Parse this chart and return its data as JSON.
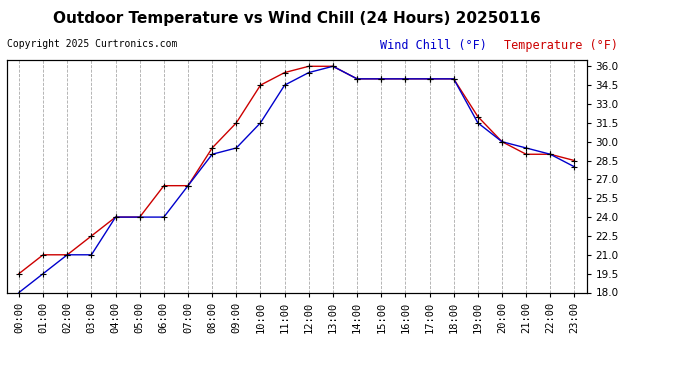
{
  "title": "Outdoor Temperature vs Wind Chill (24 Hours) 20250116",
  "copyright": "Copyright 2025 Curtronics.com",
  "legend_wind_chill": "Wind Chill (°F)",
  "legend_temperature": "Temperature (°F)",
  "hours": [
    "00:00",
    "01:00",
    "02:00",
    "03:00",
    "04:00",
    "05:00",
    "06:00",
    "07:00",
    "08:00",
    "09:00",
    "10:00",
    "11:00",
    "12:00",
    "13:00",
    "14:00",
    "15:00",
    "16:00",
    "17:00",
    "18:00",
    "19:00",
    "20:00",
    "21:00",
    "22:00",
    "23:00"
  ],
  "temperature": [
    19.5,
    21.0,
    21.0,
    22.5,
    24.0,
    24.0,
    26.5,
    26.5,
    29.5,
    31.5,
    34.5,
    35.5,
    36.0,
    36.0,
    35.0,
    35.0,
    35.0,
    35.0,
    35.0,
    32.0,
    30.0,
    29.0,
    29.0,
    28.5
  ],
  "wind_chill": [
    18.0,
    19.5,
    21.0,
    21.0,
    24.0,
    24.0,
    24.0,
    26.5,
    29.0,
    29.5,
    31.5,
    34.5,
    35.5,
    36.0,
    35.0,
    35.0,
    35.0,
    35.0,
    35.0,
    31.5,
    30.0,
    29.5,
    29.0,
    28.0
  ],
  "temp_color": "#cc0000",
  "wind_chill_color": "#0000cc",
  "marker": "+",
  "marker_color": "#000000",
  "ylim": [
    18.0,
    36.5
  ],
  "yticks_right": [
    18.0,
    19.5,
    21.0,
    22.5,
    24.0,
    25.5,
    27.0,
    28.5,
    30.0,
    31.5,
    33.0,
    34.5,
    36.0
  ],
  "grid_color": "#aaaaaa",
  "bg_color": "#ffffff",
  "title_fontsize": 11,
  "copyright_fontsize": 7,
  "legend_fontsize": 8.5,
  "tick_fontsize": 7.5
}
